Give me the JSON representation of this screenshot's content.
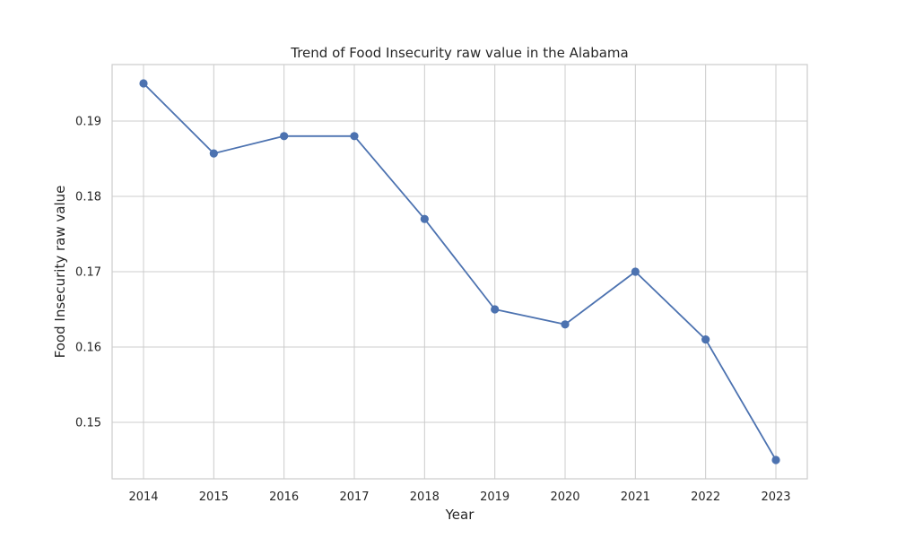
{
  "chart_data": {
    "type": "line",
    "title": "Trend of Food Insecurity raw value in the Alabama",
    "xlabel": "Year",
    "ylabel": "Food Insecurity raw value",
    "x": [
      "2014",
      "2015",
      "2016",
      "2017",
      "2018",
      "2019",
      "2020",
      "2021",
      "2022",
      "2023"
    ],
    "series": [
      {
        "values": [
          0.195,
          0.1857,
          0.188,
          0.188,
          0.177,
          0.165,
          0.163,
          0.17,
          0.161,
          0.145
        ],
        "color": "#4c72b0",
        "marker": "circle"
      }
    ],
    "yticks": [
      "0.15",
      "0.16",
      "0.17",
      "0.18",
      "0.19"
    ],
    "ylim": [
      0.1425,
      0.1975
    ],
    "grid": true,
    "legend": false
  }
}
